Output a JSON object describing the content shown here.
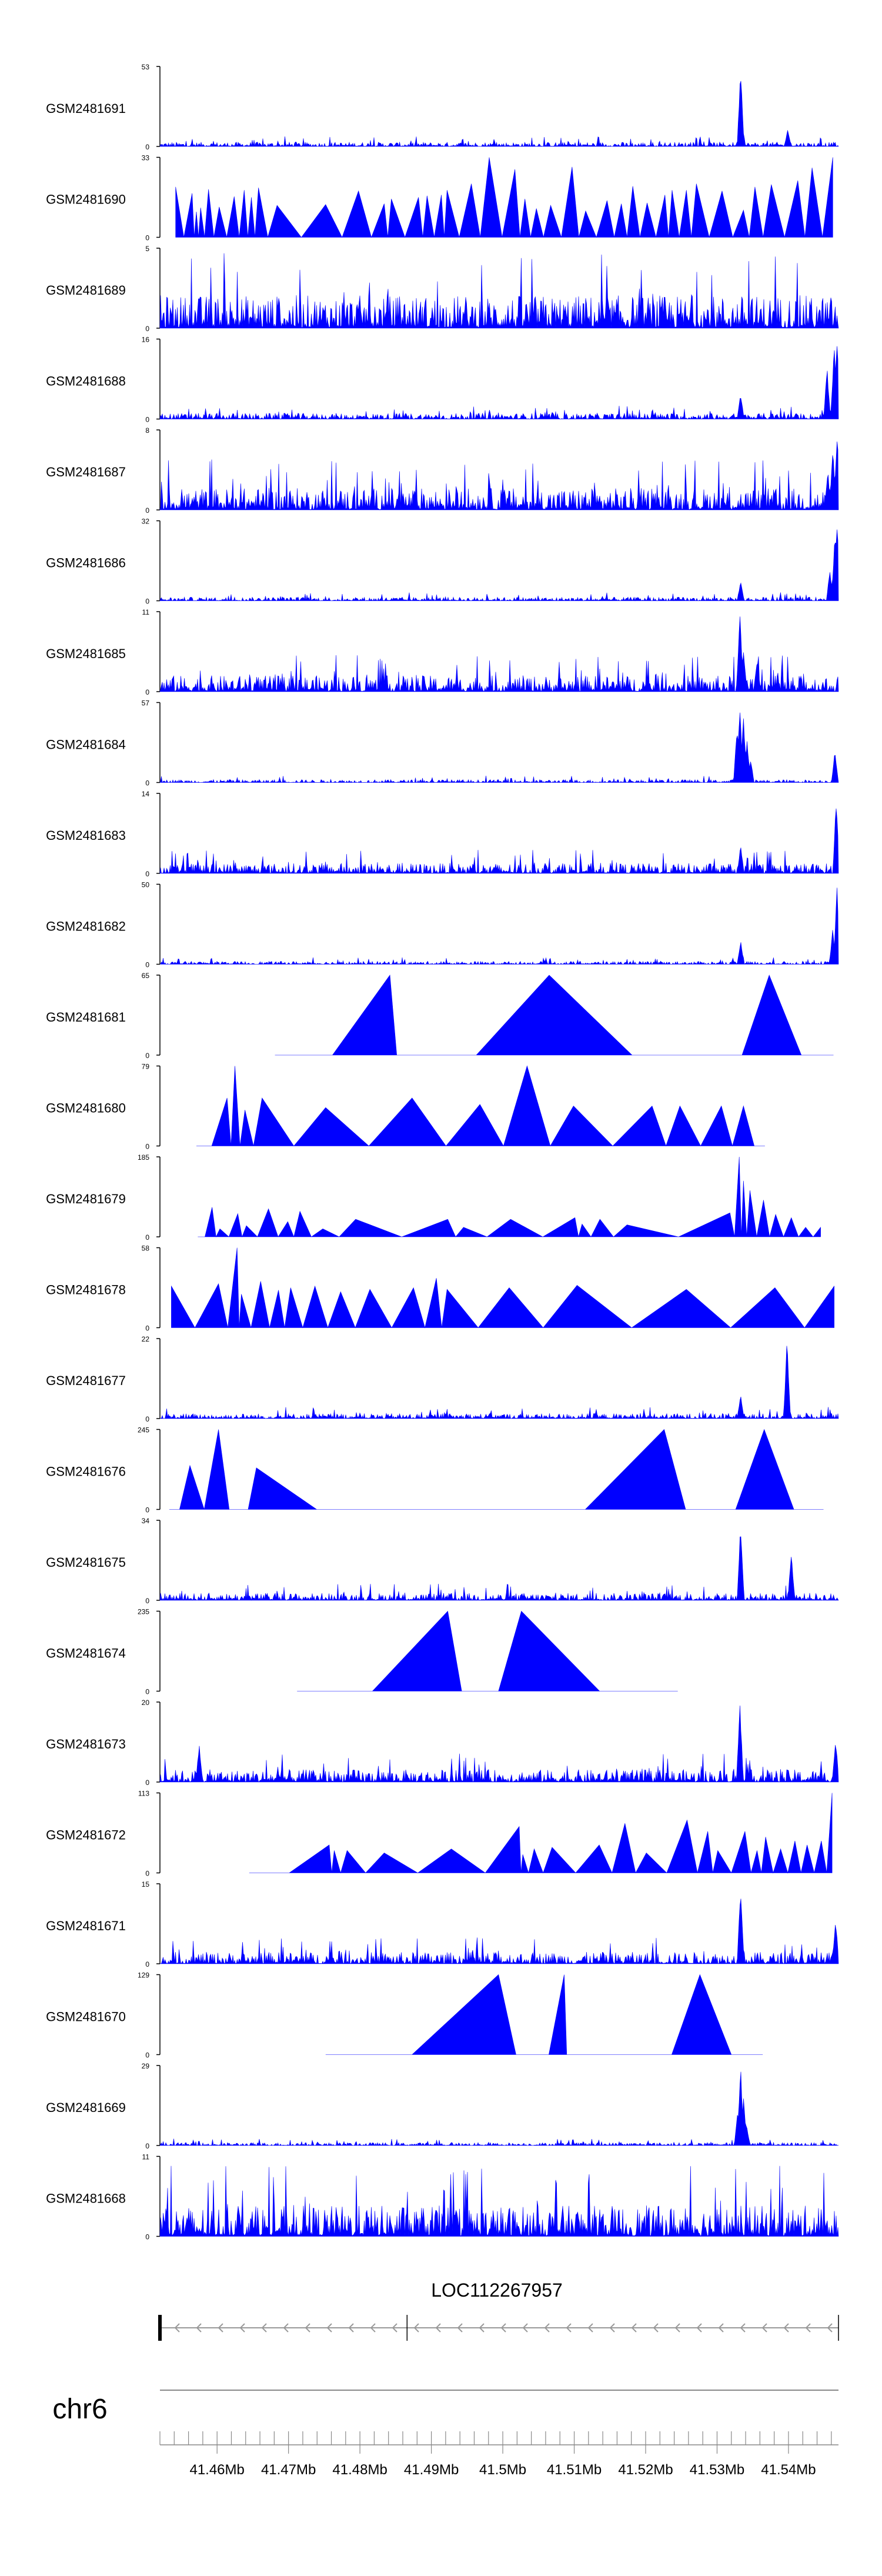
{
  "colors": {
    "signal": "#0000ff",
    "axis": "#000000",
    "chrom_line": "#888888",
    "gene": "#999999"
  },
  "chart_data": {
    "type": "area",
    "title": "",
    "chromosome": "chr6",
    "xlim": [
      41.452,
      41.547
    ],
    "x_units": "Mb",
    "x_ticks": [
      {
        "value": 41.46,
        "label": "41.46Mb"
      },
      {
        "value": 41.47,
        "label": "41.47Mb"
      },
      {
        "value": 41.48,
        "label": "41.48Mb"
      },
      {
        "value": 41.49,
        "label": "41.49Mb"
      },
      {
        "value": 41.5,
        "label": "41.5Mb"
      },
      {
        "value": 41.51,
        "label": "41.51Mb"
      },
      {
        "value": 41.52,
        "label": "41.52Mb"
      },
      {
        "value": 41.53,
        "label": "41.53Mb"
      },
      {
        "value": 41.54,
        "label": "41.54Mb"
      }
    ],
    "gene": {
      "name": "LOC112267957",
      "start": 41.452,
      "end": 41.547,
      "exon_at": 41.4866,
      "strand": "-"
    },
    "tracks": [
      {
        "name": "GSM2481691",
        "ymax": 53,
        "style": "noise",
        "base": 0.06,
        "peaks": [
          [
            41.5333,
            1.0
          ],
          [
            41.5399,
            0.22
          ]
        ]
      },
      {
        "name": "GSM2481690",
        "ymax": 33,
        "style": "hills",
        "x": [
          41.4542,
          41.4565,
          41.4571,
          41.4577,
          41.4588,
          41.4603,
          41.4624,
          41.4638,
          41.4648,
          41.4658,
          41.4684,
          41.4752,
          41.4798,
          41.4834,
          41.4844,
          41.4882,
          41.4894,
          41.4914,
          41.4922,
          41.4956,
          41.4981,
          41.5017,
          41.5031,
          41.5047,
          41.5067,
          41.5097,
          41.5116,
          41.5146,
          41.5166,
          41.5182,
          41.5202,
          41.5227,
          41.5237,
          41.5257,
          41.5271,
          41.5307,
          41.5337,
          41.5353,
          41.5376,
          41.5413,
          41.5433,
          41.5462
        ],
        "y": [
          0.63,
          0.55,
          0.32,
          0.37,
          0.6,
          0.38,
          0.51,
          0.59,
          0.5,
          0.62,
          0.4,
          0.41,
          0.58,
          0.42,
          0.48,
          0.5,
          0.52,
          0.53,
          0.59,
          0.67,
          1.0,
          0.85,
          0.48,
          0.36,
          0.4,
          0.88,
          0.33,
          0.46,
          0.42,
          0.64,
          0.43,
          0.53,
          0.59,
          0.59,
          0.67,
          0.58,
          0.34,
          0.63,
          0.66,
          0.71,
          0.87,
          1.0
        ]
      },
      {
        "name": "GSM2481689",
        "ymax": 5,
        "style": "noise",
        "base": 0.45,
        "peaks": []
      },
      {
        "name": "GSM2481688",
        "ymax": 16,
        "style": "noise",
        "base": 0.08,
        "peaks": [
          [
            41.5333,
            0.32
          ],
          [
            41.5454,
            0.65
          ],
          [
            41.5464,
            0.95
          ],
          [
            41.5468,
            1.0
          ]
        ]
      },
      {
        "name": "GSM2481687",
        "ymax": 8,
        "style": "noise",
        "base": 0.3,
        "peaks": [
          [
            41.5455,
            0.5
          ],
          [
            41.5462,
            0.8
          ],
          [
            41.5468,
            1.0
          ]
        ]
      },
      {
        "name": "GSM2481686",
        "ymax": 32,
        "style": "noise",
        "base": 0.05,
        "peaks": [
          [
            41.5333,
            0.25
          ],
          [
            41.5458,
            0.4
          ],
          [
            41.5465,
            0.85
          ],
          [
            41.5468,
            1.0
          ]
        ]
      },
      {
        "name": "GSM2481685",
        "ymax": 11,
        "style": "noise",
        "base": 0.22,
        "peaks": [
          [
            41.5332,
            1.0
          ],
          [
            41.5337,
            0.55
          ],
          [
            41.5356,
            0.42
          ]
        ]
      },
      {
        "name": "GSM2481684",
        "ymax": 57,
        "style": "noise",
        "base": 0.04,
        "peaks": [
          [
            41.5328,
            0.75
          ],
          [
            41.5332,
            1.0
          ],
          [
            41.5337,
            0.85
          ],
          [
            41.5342,
            0.55
          ],
          [
            41.5347,
            0.3
          ],
          [
            41.5465,
            0.4
          ]
        ]
      },
      {
        "name": "GSM2481683",
        "ymax": 14,
        "style": "noise",
        "base": 0.14,
        "peaks": [
          [
            41.5333,
            0.35
          ],
          [
            41.5467,
            1.0
          ]
        ]
      },
      {
        "name": "GSM2481682",
        "ymax": 50,
        "style": "noise",
        "base": 0.04,
        "peaks": [
          [
            41.5333,
            0.3
          ],
          [
            41.5462,
            0.45
          ],
          [
            41.5468,
            1.0
          ]
        ]
      },
      {
        "name": "GSM2481681",
        "ymax": 65,
        "style": "hills",
        "x": [
          41.4681,
          41.4842,
          41.4861,
          41.5065,
          41.5297,
          41.5373,
          41.5463
        ],
        "y": [
          0.0,
          1.0,
          0.0,
          1.0,
          0.0,
          1.0,
          0.0
        ]
      },
      {
        "name": "GSM2481680",
        "ymax": 79,
        "style": "hills",
        "x": [
          41.4571,
          41.4614,
          41.4625,
          41.4639,
          41.4663,
          41.4752,
          41.4873,
          41.4968,
          41.5034,
          41.5099,
          41.5209,
          41.5248,
          41.5306,
          41.5337,
          41.5367
        ],
        "y": [
          0.0,
          0.6,
          1.0,
          0.45,
          0.6,
          0.48,
          0.6,
          0.52,
          1.0,
          0.5,
          0.5,
          0.5,
          0.5,
          0.5,
          0.0
        ]
      },
      {
        "name": "GSM2481679",
        "ymax": 185,
        "style": "hills",
        "x": [
          41.4573,
          41.4593,
          41.4604,
          41.4629,
          41.4641,
          41.4672,
          41.4699,
          41.4716,
          41.4748,
          41.4794,
          41.4923,
          41.4945,
          41.5011,
          41.5101,
          41.5111,
          41.5136,
          41.5174,
          41.5318,
          41.5331,
          41.5337,
          41.5346,
          41.5365,
          41.5382,
          41.5404,
          41.5424,
          41.5445
        ],
        "y": [
          0.0,
          0.37,
          0.1,
          0.29,
          0.14,
          0.35,
          0.19,
          0.32,
          0.1,
          0.22,
          0.22,
          0.12,
          0.22,
          0.24,
          0.16,
          0.22,
          0.15,
          0.3,
          1.0,
          0.7,
          0.58,
          0.46,
          0.28,
          0.24,
          0.12,
          0.12
        ]
      },
      {
        "name": "GSM2481678",
        "ymax": 58,
        "style": "hills",
        "x": [
          41.4536,
          41.4602,
          41.4628,
          41.4634,
          41.4661,
          41.4686,
          41.4703,
          41.4737,
          41.4773,
          41.4814,
          41.4875,
          41.4907,
          41.4922,
          41.5009,
          41.5104,
          41.5257,
          41.5381,
          41.5464
        ],
        "y": [
          0.52,
          0.55,
          1.0,
          0.42,
          0.58,
          0.47,
          0.5,
          0.52,
          0.45,
          0.48,
          0.5,
          0.62,
          0.48,
          0.5,
          0.53,
          0.48,
          0.5,
          0.52
        ]
      },
      {
        "name": "GSM2481677",
        "ymax": 22,
        "style": "noise",
        "base": 0.07,
        "peaks": [
          [
            41.5333,
            0.3
          ],
          [
            41.5398,
            1.0
          ]
        ]
      },
      {
        "name": "GSM2481676",
        "ymax": 245,
        "style": "hills",
        "x": [
          41.4533,
          41.4562,
          41.4602,
          41.4632,
          41.4655,
          41.4824,
          41.5005,
          41.5226,
          41.5286,
          41.5366,
          41.5449
        ],
        "y": [
          0.0,
          0.55,
          1.0,
          0.0,
          0.52,
          0.0,
          0.0,
          1.0,
          0.0,
          1.0,
          0.0
        ]
      },
      {
        "name": "GSM2481675",
        "ymax": 34,
        "style": "noise",
        "base": 0.1,
        "peaks": [
          [
            41.5333,
            1.0
          ],
          [
            41.5404,
            0.62
          ]
        ]
      },
      {
        "name": "GSM2481674",
        "ymax": 235,
        "style": "hills",
        "x": [
          41.4712,
          41.4923,
          41.4962,
          41.5026,
          41.5245
        ],
        "y": [
          0.0,
          1.0,
          0.0,
          1.0,
          0.0
        ]
      },
      {
        "name": "GSM2481673",
        "ymax": 20,
        "style": "noise",
        "base": 0.17,
        "peaks": [
          [
            41.5332,
            1.0
          ],
          [
            41.5466,
            0.55
          ],
          [
            41.4575,
            0.48
          ]
        ]
      },
      {
        "name": "GSM2481672",
        "ymax": 113,
        "style": "hills",
        "x": [
          41.4645,
          41.4757,
          41.4764,
          41.4782,
          41.4834,
          41.4928,
          41.5023,
          41.5028,
          41.5044,
          41.5069,
          41.5135,
          41.5171,
          41.5201,
          41.5258,
          41.5287,
          41.5301,
          41.5339,
          41.5356,
          41.5368,
          41.5389,
          41.5409,
          41.5426,
          41.5446,
          41.5461
        ],
        "y": [
          0.0,
          0.35,
          0.28,
          0.28,
          0.25,
          0.3,
          0.58,
          0.23,
          0.3,
          0.32,
          0.35,
          0.62,
          0.25,
          0.66,
          0.52,
          0.28,
          0.52,
          0.28,
          0.45,
          0.3,
          0.4,
          0.35,
          0.4,
          1.0
        ]
      },
      {
        "name": "GSM2481671",
        "ymax": 15,
        "style": "noise",
        "base": 0.16,
        "peaks": [
          [
            41.5333,
            1.0
          ],
          [
            41.5466,
            0.55
          ]
        ]
      },
      {
        "name": "GSM2481670",
        "ymax": 129,
        "style": "hills",
        "x": [
          41.4752,
          41.4994,
          41.5043,
          41.5086,
          41.5093,
          41.5197,
          41.5276,
          41.5364
        ],
        "y": [
          0.0,
          1.0,
          0.0,
          1.0,
          0.0,
          0.0,
          1.0,
          0.0
        ]
      },
      {
        "name": "GSM2481669",
        "ymax": 29,
        "style": "noise",
        "base": 0.04,
        "peaks": [
          [
            41.5329,
            0.45
          ],
          [
            41.5333,
            1.0
          ],
          [
            41.5337,
            0.62
          ],
          [
            41.5341,
            0.3
          ]
        ]
      },
      {
        "name": "GSM2481668",
        "ymax": 11,
        "style": "noise",
        "base": 0.42,
        "peaks": []
      }
    ]
  }
}
